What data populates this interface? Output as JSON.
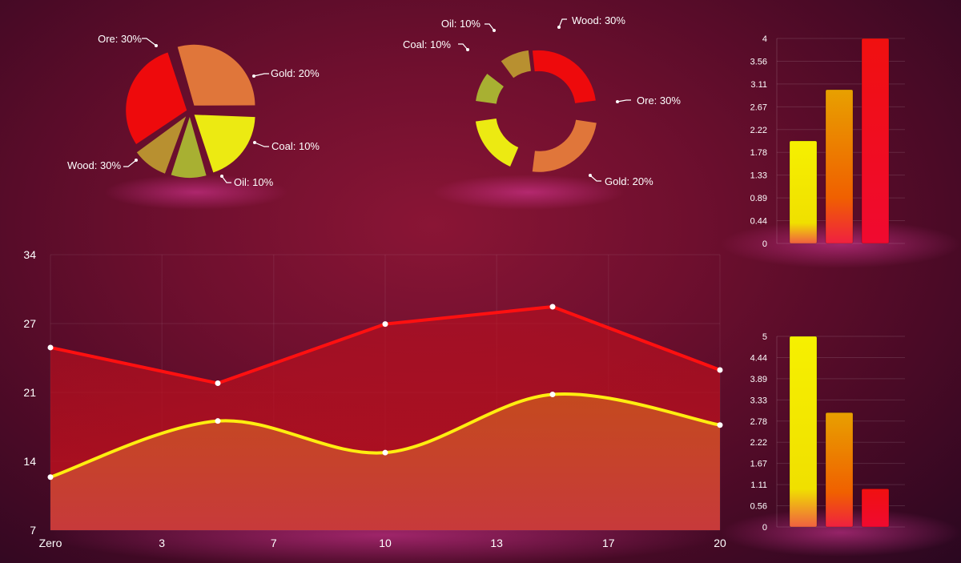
{
  "colors": {
    "wood": "#ee0a0c",
    "ore": "#e0763a",
    "gold": "#ecea12",
    "coal": "#a8b032",
    "oil": "#b89030",
    "line_red": "#ff1010",
    "line_yellow": "#ffee10"
  },
  "chart_data": [
    {
      "type": "pie",
      "slices": [
        {
          "label": "Ore: 30%",
          "value": 30,
          "color": "#e0763a"
        },
        {
          "label": "Gold: 20%",
          "value": 20,
          "color": "#ecea12"
        },
        {
          "label": "Coal: 10%",
          "value": 10,
          "color": "#a8b032"
        },
        {
          "label": "Oil: 10%",
          "value": 10,
          "color": "#b89030"
        },
        {
          "label": "Wood: 30%",
          "value": 30,
          "color": "#ee0a0c"
        }
      ]
    },
    {
      "type": "pie",
      "donut": true,
      "slices": [
        {
          "label": "Wood: 30%",
          "value": 30,
          "color": "#ee0a0c"
        },
        {
          "label": "Ore: 30%",
          "value": 30,
          "color": "#e0763a"
        },
        {
          "label": "Gold: 20%",
          "value": 20,
          "color": "#ecea12"
        },
        {
          "label": "Coal: 10%",
          "value": 10,
          "color": "#a8b032"
        },
        {
          "label": "Oil: 10%",
          "value": 10,
          "color": "#b89030"
        }
      ]
    },
    {
      "type": "bar",
      "values": [
        2,
        3,
        4
      ],
      "ylim": [
        0,
        4
      ],
      "yticks": [
        "0",
        "0.44",
        "0.89",
        "1.33",
        "1.78",
        "2.22",
        "2.67",
        "3.11",
        "3.56",
        "4"
      ]
    },
    {
      "type": "bar",
      "values": [
        5,
        3,
        1
      ],
      "ylim": [
        0,
        5
      ],
      "yticks": [
        "0",
        "0.56",
        "1.11",
        "1.67",
        "2.22",
        "2.78",
        "3.33",
        "3.89",
        "4.44",
        "5"
      ]
    },
    {
      "type": "area",
      "xlim": [
        0,
        20
      ],
      "ylim": [
        7,
        34
      ],
      "xticks": [
        {
          "value": 0,
          "label": "Zero"
        },
        {
          "value": 3.33,
          "label": "3"
        },
        {
          "value": 6.67,
          "label": "7"
        },
        {
          "value": 10,
          "label": "10"
        },
        {
          "value": 13.33,
          "label": "13"
        },
        {
          "value": 16.67,
          "label": "17"
        },
        {
          "value": 20,
          "label": "20"
        }
      ],
      "yticks": [
        "7",
        "14",
        "21",
        "27",
        "34"
      ],
      "series": [
        {
          "x": [
            0,
            5,
            10,
            15,
            20
          ],
          "values": [
            24.9,
            21.4,
            27.2,
            28.9,
            22.7
          ],
          "color": "#ff1010",
          "smooth": false
        },
        {
          "x": [
            0,
            5,
            10,
            15,
            20
          ],
          "values": [
            12.2,
            17.7,
            14.6,
            20.3,
            17.3
          ],
          "color": "#ffee10",
          "smooth": true
        }
      ]
    }
  ]
}
